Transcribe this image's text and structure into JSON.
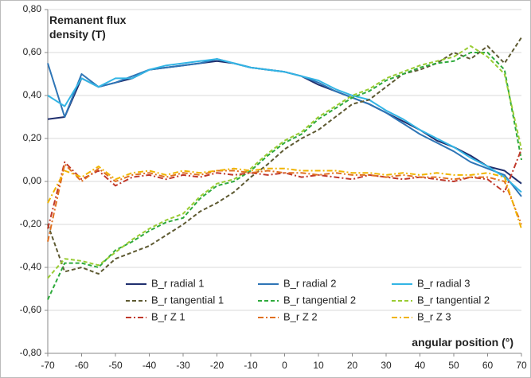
{
  "chart_data": {
    "type": "line",
    "y_label": "Remanent flux density  (T)",
    "x_label": "angular position (°)",
    "x": [
      -70,
      -65,
      -60,
      -55,
      -50,
      -45,
      -40,
      -35,
      -30,
      -25,
      -20,
      -15,
      -10,
      -5,
      0,
      5,
      10,
      15,
      20,
      25,
      30,
      35,
      40,
      45,
      50,
      55,
      60,
      65,
      70
    ],
    "xlim": [
      -70,
      70
    ],
    "xticks": [
      -70,
      -60,
      -50,
      -40,
      -30,
      -20,
      -10,
      0,
      10,
      20,
      30,
      40,
      50,
      60,
      70
    ],
    "ylim": [
      -0.8,
      0.8
    ],
    "yticks": [
      {
        "value": -0.8,
        "label": "-0,80"
      },
      {
        "value": -0.6,
        "label": "-0,60"
      },
      {
        "value": -0.4,
        "label": "-0,40"
      },
      {
        "value": -0.2,
        "label": "-0,20"
      },
      {
        "value": 0,
        "label": "0,00"
      },
      {
        "value": 0.2,
        "label": "0,20"
      },
      {
        "value": 0.4,
        "label": "0,40"
      },
      {
        "value": 0.6,
        "label": "0,60"
      },
      {
        "value": 0.8,
        "label": "0,80"
      }
    ],
    "grid": true,
    "legend": "bottom-right",
    "series": [
      {
        "name": "B_r radial 1",
        "color": "#1f2f6e",
        "line_style": "solid",
        "values": [
          0.29,
          0.3,
          0.48,
          0.44,
          0.46,
          0.48,
          0.52,
          0.53,
          0.54,
          0.55,
          0.56,
          0.55,
          0.53,
          0.52,
          0.51,
          0.49,
          0.45,
          0.42,
          0.39,
          0.36,
          0.32,
          0.28,
          0.24,
          0.19,
          0.16,
          0.12,
          0.07,
          0.05,
          -0.01
        ]
      },
      {
        "name": "B_r radial 2",
        "color": "#2e75b6",
        "line_style": "solid",
        "values": [
          0.55,
          0.3,
          0.5,
          0.44,
          0.46,
          0.49,
          0.52,
          0.53,
          0.54,
          0.55,
          0.57,
          0.55,
          0.53,
          0.52,
          0.51,
          0.49,
          0.46,
          0.42,
          0.39,
          0.36,
          0.32,
          0.27,
          0.22,
          0.18,
          0.14,
          0.09,
          0.06,
          0.03,
          -0.07
        ]
      },
      {
        "name": "B_r radial 3",
        "color": "#33b5e5",
        "line_style": "solid",
        "values": [
          0.4,
          0.35,
          0.48,
          0.44,
          0.48,
          0.48,
          0.52,
          0.54,
          0.55,
          0.56,
          0.57,
          0.55,
          0.53,
          0.52,
          0.51,
          0.49,
          0.47,
          0.43,
          0.4,
          0.38,
          0.33,
          0.29,
          0.24,
          0.2,
          0.16,
          0.11,
          0.07,
          0.02,
          -0.05
        ]
      },
      {
        "name": "B_r tangential 1",
        "color": "#5e5a32",
        "line_style": "dashed",
        "values": [
          -0.2,
          -0.42,
          -0.4,
          -0.43,
          -0.36,
          -0.33,
          -0.3,
          -0.25,
          -0.2,
          -0.14,
          -0.1,
          -0.05,
          0.02,
          0.08,
          0.15,
          0.2,
          0.24,
          0.3,
          0.36,
          0.38,
          0.44,
          0.5,
          0.52,
          0.55,
          0.6,
          0.57,
          0.63,
          0.55,
          0.67
        ]
      },
      {
        "name": "B_r tangential 2",
        "color": "#2eaa3c",
        "line_style": "dashed",
        "values": [
          -0.55,
          -0.38,
          -0.38,
          -0.4,
          -0.32,
          -0.28,
          -0.23,
          -0.19,
          -0.17,
          -0.08,
          -0.02,
          0.0,
          0.05,
          0.12,
          0.18,
          0.22,
          0.29,
          0.34,
          0.39,
          0.42,
          0.47,
          0.5,
          0.53,
          0.55,
          0.56,
          0.6,
          0.6,
          0.52,
          0.1
        ]
      },
      {
        "name": "B_r tangential 2",
        "color": "#99cc33",
        "line_style": "dashed",
        "values": [
          -0.45,
          -0.36,
          -0.37,
          -0.39,
          -0.33,
          -0.27,
          -0.22,
          -0.18,
          -0.15,
          -0.07,
          -0.01,
          0.01,
          0.06,
          0.13,
          0.19,
          0.23,
          0.3,
          0.35,
          0.4,
          0.43,
          0.48,
          0.51,
          0.54,
          0.56,
          0.58,
          0.63,
          0.58,
          0.5,
          0.15
        ]
      },
      {
        "name": "B_r Z 1",
        "color": "#c0392b",
        "line_style": "dashdot",
        "values": [
          -0.22,
          0.09,
          0.01,
          0.05,
          -0.02,
          0.02,
          0.03,
          0.01,
          0.03,
          0.02,
          0.04,
          0.03,
          0.04,
          0.03,
          0.04,
          0.02,
          0.03,
          0.02,
          0.01,
          0.03,
          0.02,
          0.01,
          0.02,
          0.01,
          0.0,
          0.02,
          0.01,
          -0.05,
          0.15
        ]
      },
      {
        "name": "B_r Z 2",
        "color": "#e07020",
        "line_style": "dashdot",
        "values": [
          -0.28,
          0.08,
          0.0,
          0.06,
          0.0,
          0.03,
          0.04,
          0.02,
          0.04,
          0.03,
          0.05,
          0.05,
          0.04,
          0.05,
          0.04,
          0.04,
          0.03,
          0.04,
          0.03,
          0.03,
          0.02,
          0.03,
          0.02,
          0.02,
          0.01,
          0.02,
          0.02,
          0.0,
          -0.2
        ]
      },
      {
        "name": "B_r Z 3",
        "color": "#f0b400",
        "line_style": "dashdot",
        "values": [
          -0.1,
          0.05,
          0.02,
          0.07,
          0.01,
          0.04,
          0.05,
          0.03,
          0.05,
          0.04,
          0.05,
          0.06,
          0.05,
          0.06,
          0.06,
          0.05,
          0.05,
          0.05,
          0.04,
          0.04,
          0.03,
          0.04,
          0.03,
          0.04,
          0.03,
          0.03,
          0.04,
          0.02,
          -0.22
        ]
      }
    ]
  }
}
